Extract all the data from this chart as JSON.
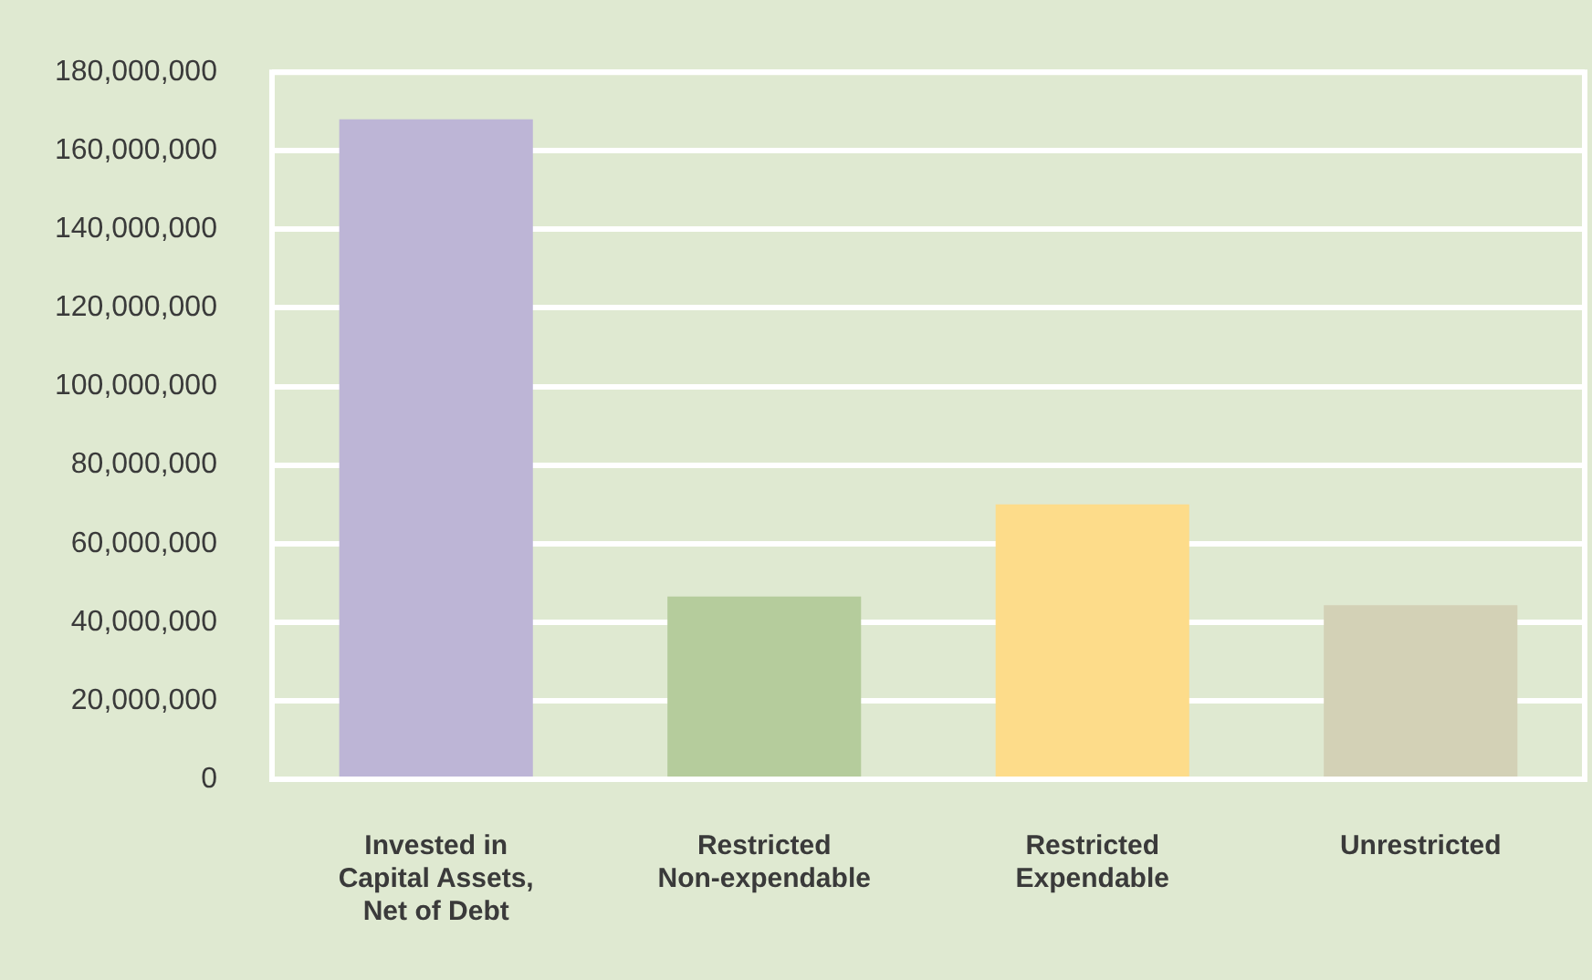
{
  "chart_data": {
    "type": "bar",
    "categories": [
      "Invested in\nCapital Assets,\nNet of Debt",
      "Restricted\nNon-expendable",
      "Restricted\nExpendable",
      "Unrestricted"
    ],
    "values": [
      168000000,
      46500000,
      70000000,
      44300000
    ],
    "colors": [
      "#bdb5d6",
      "#b5cc9c",
      "#fddc8a",
      "#d3d1b6"
    ],
    "ylim": [
      0,
      180000000
    ],
    "yticks": [
      {
        "value": 0,
        "label": "0"
      },
      {
        "value": 20000000,
        "label": "20,000,000"
      },
      {
        "value": 40000000,
        "label": "40,000,000"
      },
      {
        "value": 60000000,
        "label": "60,000,000"
      },
      {
        "value": 80000000,
        "label": "80,000,000"
      },
      {
        "value": 100000000,
        "label": "100,000,000"
      },
      {
        "value": 120000000,
        "label": "120,000,000"
      },
      {
        "value": 140000000,
        "label": "140,000,000"
      },
      {
        "value": 160000000,
        "label": "160,000,000"
      },
      {
        "value": 180000000,
        "label": "180,000,000"
      }
    ],
    "grid": "y",
    "legend": false
  }
}
